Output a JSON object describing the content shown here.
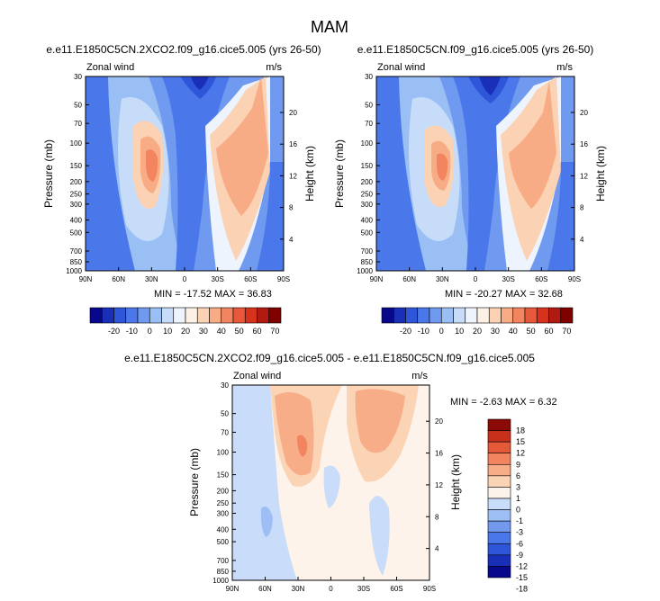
{
  "figure_title": "MAM",
  "colors": {
    "main_scale": [
      "#08088c",
      "#1a2fb8",
      "#2f55d8",
      "#4a78ea",
      "#6f9aef",
      "#99bff5",
      "#c6dcf9",
      "#eef4fd",
      "#fdf0e4",
      "#fbd2b3",
      "#f7ac86",
      "#f2855f",
      "#e8583a",
      "#d6321c",
      "#b11a10",
      "#800000"
    ],
    "diff_scale": [
      "#08088c",
      "#1a2fb8",
      "#2f55d8",
      "#4a78ea",
      "#7399ef",
      "#9ebff5",
      "#c9dcf9",
      "#fdf3ea",
      "#fbd4b5",
      "#f7ad87",
      "#f2855f",
      "#e45a38",
      "#c7301b",
      "#8c0a05"
    ]
  },
  "chart_data": [
    {
      "type": "heatmap",
      "title": "e.e11.E1850C5CN.2XCO2.f09_g16.cice5.005 (yrs 26-50)",
      "corner_left": "Zonal wind",
      "corner_right": "m/s",
      "ylabel": "Pressure (mb)",
      "ylabel_right": "Height (km)",
      "x_ticks": [
        "90N",
        "60N",
        "30N",
        "0",
        "30S",
        "60S",
        "90S"
      ],
      "y_ticks": [
        "30",
        "50",
        "70",
        "100",
        "150",
        "200",
        "250",
        "300",
        "400",
        "500",
        "700",
        "850",
        "1000"
      ],
      "height_ticks": [
        "20",
        "16",
        "12",
        "8",
        "4"
      ],
      "min_max_text": "MIN = -17.52  MAX = 36.83",
      "min": -17.52,
      "max": 36.83,
      "colorbar_labels": [
        "-20",
        "-10",
        "0",
        "10",
        "20",
        "30",
        "40",
        "50",
        "60",
        "70"
      ]
    },
    {
      "type": "heatmap",
      "title": "e.e11.E1850C5CN.f09_g16.cice5.005 (yrs 26-50)",
      "corner_left": "Zonal wind",
      "corner_right": "m/s",
      "ylabel": "Pressure (mb)",
      "ylabel_right": "Height (km)",
      "x_ticks": [
        "90N",
        "60N",
        "30N",
        "0",
        "30S",
        "60S",
        "90S"
      ],
      "y_ticks": [
        "30",
        "50",
        "70",
        "100",
        "150",
        "200",
        "250",
        "300",
        "400",
        "500",
        "700",
        "850",
        "1000"
      ],
      "height_ticks": [
        "20",
        "16",
        "12",
        "8",
        "4"
      ],
      "min_max_text": "MIN = -20.27  MAX = 32.68",
      "min": -20.27,
      "max": 32.68,
      "colorbar_labels": [
        "-20",
        "-10",
        "0",
        "10",
        "20",
        "30",
        "40",
        "50",
        "60",
        "70"
      ]
    },
    {
      "type": "heatmap",
      "title": "e.e11.E1850C5CN.2XCO2.f09_g16.cice5.005 - e.e11.E1850C5CN.f09_g16.cice5.005",
      "corner_left": "Zonal wind",
      "corner_right": "m/s",
      "ylabel": "Pressure (mb)",
      "ylabel_right": "Height (km)",
      "x_ticks": [
        "90N",
        "60N",
        "30N",
        "0",
        "30S",
        "60S",
        "90S"
      ],
      "y_ticks": [
        "30",
        "50",
        "70",
        "100",
        "150",
        "200",
        "250",
        "300",
        "400",
        "500",
        "700",
        "850",
        "1000"
      ],
      "height_ticks": [
        "20",
        "16",
        "12",
        "8",
        "4"
      ],
      "min_max_text": "MIN = -2.63  MAX =  6.32",
      "min": -2.63,
      "max": 6.32,
      "colorbar_labels": [
        "18",
        "15",
        "12",
        "9",
        "6",
        "3",
        "1",
        "0",
        "-1",
        "-3",
        "-6",
        "-9",
        "-12",
        "-15",
        "-18"
      ]
    }
  ]
}
